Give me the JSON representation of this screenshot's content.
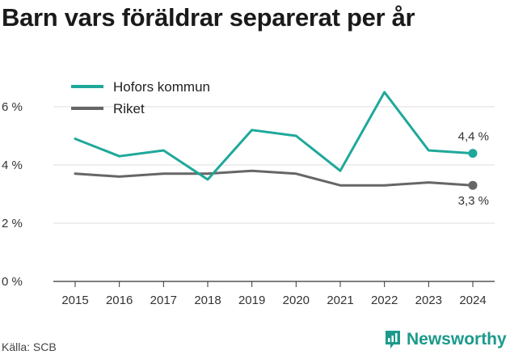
{
  "header": {
    "title": "Barn vars föräldrar separerat per år"
  },
  "footer": {
    "source": "Källa: SCB",
    "brand": "Newsworthy",
    "brand_icon": "newsworthy-chart-icon"
  },
  "colors": {
    "hofors": "#1fa89a",
    "riket": "#666666",
    "grid": "#dddddd",
    "brand": "#1c9a8b"
  },
  "chart_data": {
    "type": "line",
    "title": "Barn vars föräldrar separerat per år",
    "x": [
      "2015",
      "2016",
      "2017",
      "2018",
      "2019",
      "2020",
      "2021",
      "2022",
      "2023",
      "2024"
    ],
    "series": [
      {
        "name": "Hofors kommun",
        "values": [
          4.9,
          4.3,
          4.5,
          3.5,
          5.2,
          5.0,
          3.8,
          6.5,
          4.5,
          4.4
        ],
        "end_label": "4,4 %"
      },
      {
        "name": "Riket",
        "values": [
          3.7,
          3.6,
          3.7,
          3.7,
          3.8,
          3.7,
          3.3,
          3.3,
          3.4,
          3.3
        ],
        "end_label": "3,3 %"
      }
    ],
    "yticks": [
      0,
      2,
      4,
      6
    ],
    "ytick_labels": [
      "0 %",
      "2 %",
      "4 %",
      "6 %"
    ],
    "ylim": [
      0,
      7
    ],
    "grid": true,
    "legend": "top-left"
  }
}
